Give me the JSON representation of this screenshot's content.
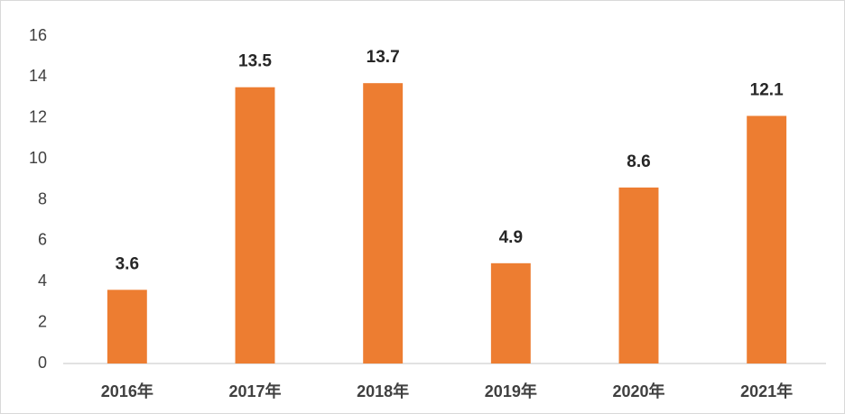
{
  "chart_data": {
    "type": "bar",
    "categories": [
      "2016年",
      "2017年",
      "2018年",
      "2019年",
      "2020年",
      "2021年"
    ],
    "values": [
      3.6,
      13.5,
      13.7,
      4.9,
      8.6,
      12.1
    ],
    "color": "#ed7d31",
    "ylim": [
      0,
      16
    ],
    "yticks": [
      0,
      2,
      4,
      6,
      8,
      10,
      12,
      14,
      16
    ],
    "grid": false
  }
}
